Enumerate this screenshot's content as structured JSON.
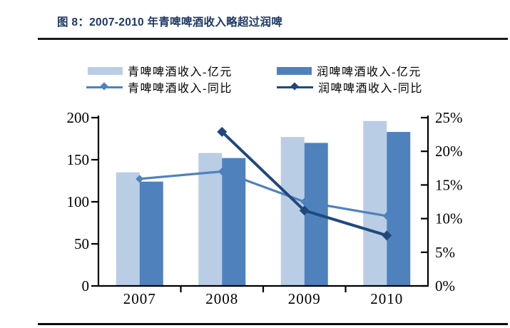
{
  "figure": {
    "title": "图 8：2007-2010 年青啤啤酒收入略超过润啤"
  },
  "chart_data": {
    "type": "bar+line combo",
    "title": "图 8：2007-2010 年青啤啤酒收入略超过润啤",
    "categories": [
      "2007",
      "2008",
      "2009",
      "2010"
    ],
    "series": [
      {
        "name": "青啤啤酒收入-亿元",
        "type": "bar",
        "axis": "left",
        "color": "#b9cde5",
        "values": [
          135,
          158,
          177,
          196
        ]
      },
      {
        "name": "润啤啤酒收入-亿元",
        "type": "bar",
        "axis": "left",
        "color": "#4f81bd",
        "values": [
          124,
          152,
          170,
          183
        ]
      },
      {
        "name": "青啤啤酒收入-同比",
        "type": "line",
        "axis": "right",
        "color": "#4f81bd",
        "values": [
          15.9,
          17.0,
          12.5,
          10.4
        ]
      },
      {
        "name": "润啤啤酒收入-同比",
        "type": "line",
        "axis": "right",
        "color": "#1f497d",
        "values": [
          null,
          22.9,
          11.2,
          7.5
        ]
      }
    ],
    "left_axis": {
      "min": 0,
      "max": 200,
      "ticks": [
        0,
        50,
        100,
        150,
        200
      ],
      "tick_labels": [
        "0",
        "50",
        "100",
        "150",
        "200"
      ]
    },
    "right_axis": {
      "min": 0,
      "max": 25,
      "ticks": [
        0,
        5,
        10,
        15,
        20,
        25
      ],
      "tick_labels": [
        "0%",
        "5%",
        "10%",
        "15%",
        "20%",
        "25%"
      ]
    },
    "legend_position": "top",
    "grid": false,
    "axis_color": "#000000"
  }
}
